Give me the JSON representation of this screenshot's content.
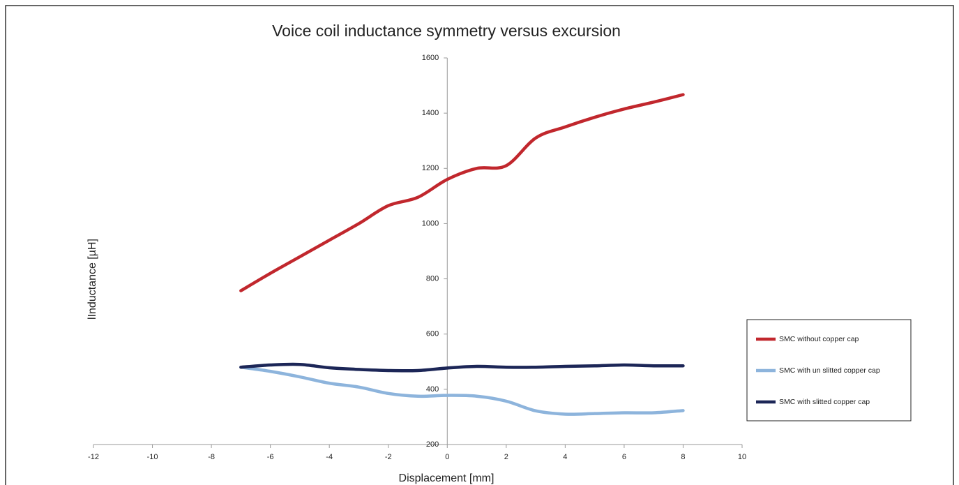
{
  "chart_data": {
    "type": "line",
    "title": "Voice coil inductance symmetry versus excursion",
    "xlabel": "Displacement [mm]",
    "ylabel": "lInductance [µH]",
    "x": [
      -7,
      -6,
      -5,
      -4,
      -3,
      -2,
      -1,
      0,
      1,
      2,
      3,
      4,
      5,
      6,
      7,
      8
    ],
    "series": [
      {
        "name": "SMC without copper cap",
        "color": "#c1272d",
        "values": [
          757,
          820,
          880,
          940,
          1000,
          1065,
          1095,
          1160,
          1200,
          1210,
          1310,
          1350,
          1385,
          1415,
          1440,
          1467
        ]
      },
      {
        "name": "SMC with un slitted copper cap",
        "color": "#8db4dc",
        "values": [
          480,
          465,
          445,
          422,
          408,
          385,
          375,
          378,
          375,
          357,
          322,
          310,
          312,
          315,
          315,
          323
        ]
      },
      {
        "name": "SMC with slitted copper cap",
        "color": "#1c2657",
        "values": [
          480,
          488,
          490,
          478,
          472,
          468,
          468,
          477,
          483,
          480,
          480,
          483,
          485,
          488,
          485,
          485
        ]
      }
    ],
    "xlim": [
      -12,
      10
    ],
    "xticks": [
      -12,
      -10,
      -8,
      -6,
      -4,
      -2,
      0,
      2,
      4,
      6,
      8,
      10
    ],
    "ylim": [
      200,
      1600
    ],
    "yticks": [
      200,
      400,
      600,
      800,
      1000,
      1200,
      1400,
      1600
    ],
    "legend": "right"
  }
}
